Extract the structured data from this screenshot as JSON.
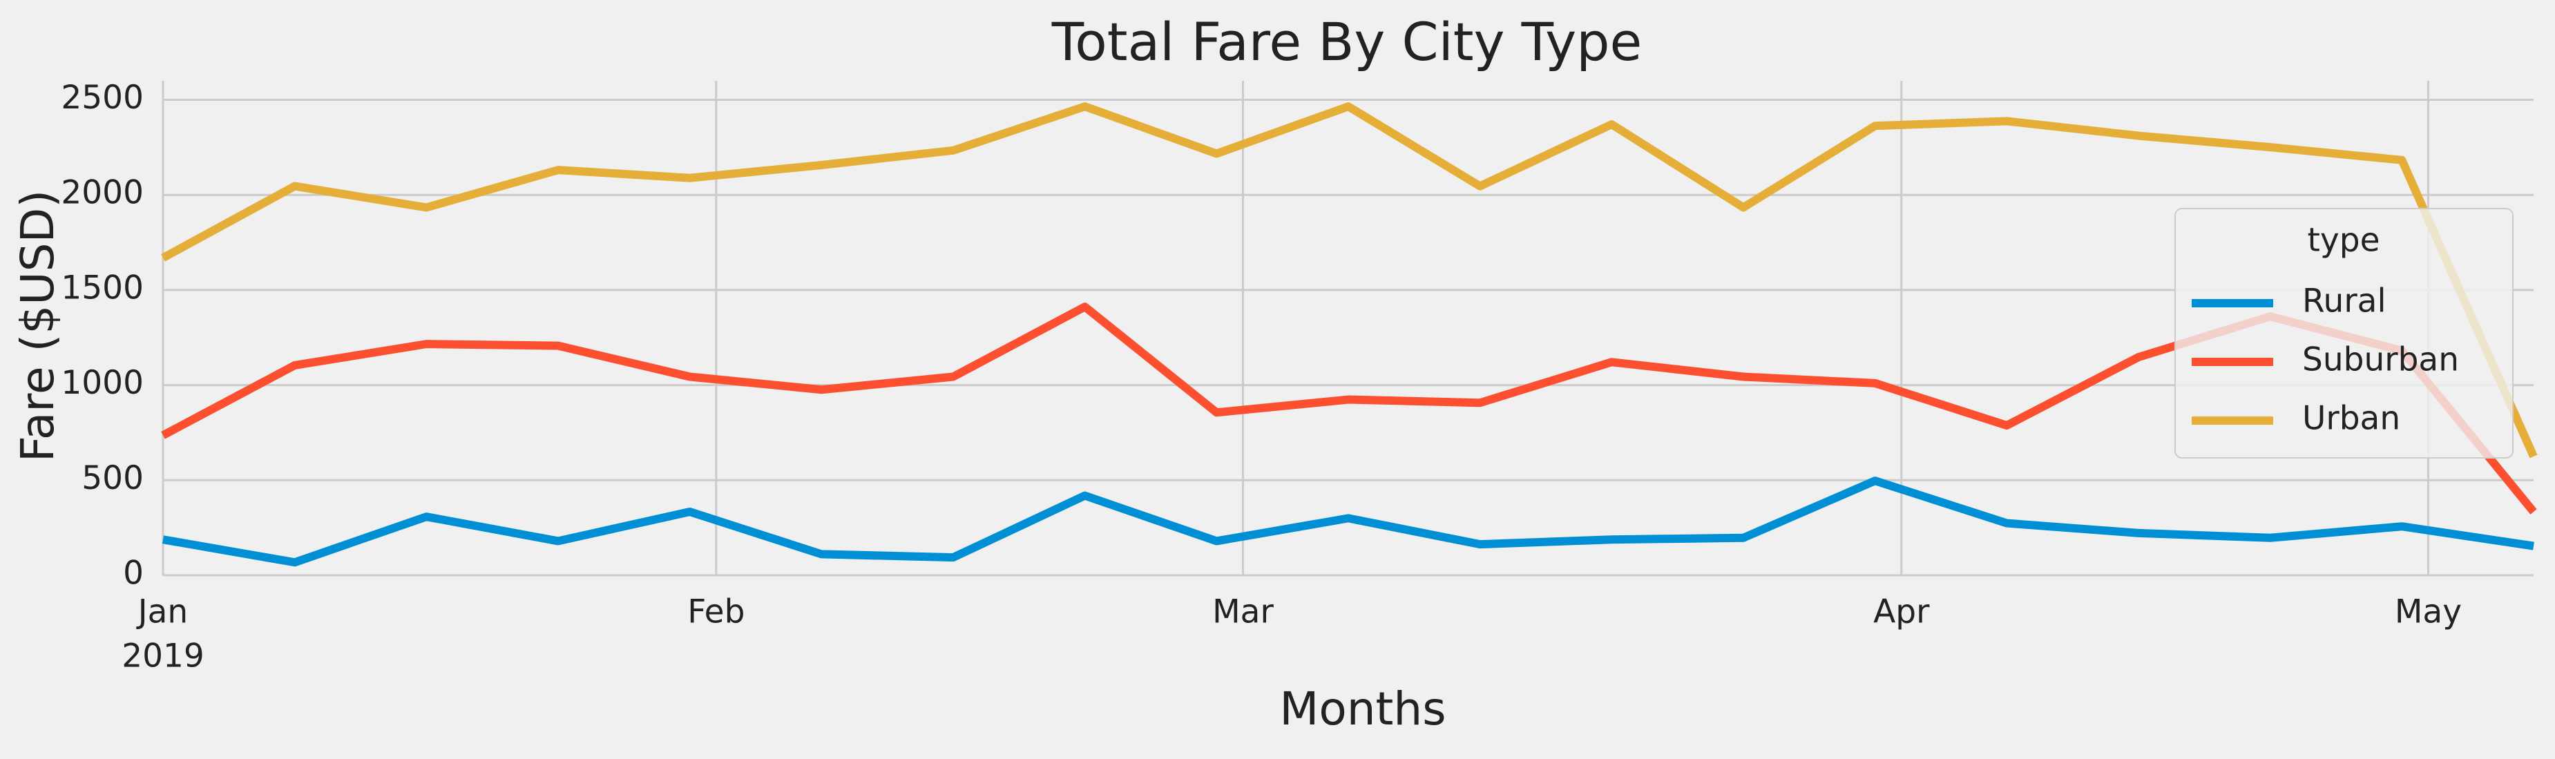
{
  "chart_data": {
    "type": "line",
    "title": "Total Fare By City Type",
    "x_label": "Months",
    "y_label": "Fare ($USD)",
    "x": [
      0,
      1,
      2,
      3,
      4,
      5,
      6,
      7,
      8,
      9,
      10,
      11,
      12,
      13,
      14,
      15,
      16,
      17,
      18
    ],
    "xlim": [
      0,
      18
    ],
    "xticks": [
      {
        "value": 0,
        "label": "Jan"
      },
      {
        "value": 4.2,
        "label": "Feb"
      },
      {
        "value": 8.2,
        "label": "Mar"
      },
      {
        "value": 13.2,
        "label": "Apr"
      },
      {
        "value": 17.2,
        "label": "May"
      }
    ],
    "x_year_label": "2019",
    "ylim": [
      0,
      2600
    ],
    "yticks": [
      0,
      500,
      1000,
      1500,
      2000,
      2500
    ],
    "grid": true,
    "legend_title": "type",
    "legend_position": "right",
    "series": [
      {
        "name": "Rural",
        "color": "#008fd5",
        "values": [
          188,
          68,
          308,
          180,
          334,
          111,
          94,
          419,
          180,
          300,
          163,
          188,
          197,
          497,
          274,
          222,
          197,
          257,
          154
        ]
      },
      {
        "name": "Suburban",
        "color": "#fc4f30",
        "values": [
          736,
          1104,
          1216,
          1207,
          1044,
          976,
          1044,
          1412,
          856,
          924,
          907,
          1121,
          1044,
          1010,
          788,
          1147,
          1361,
          1181,
          334
        ]
      },
      {
        "name": "Urban",
        "color": "#e5ae38",
        "values": [
          1669,
          2046,
          1934,
          2131,
          2089,
          2157,
          2234,
          2465,
          2217,
          2465,
          2046,
          2371,
          1934,
          2363,
          2388,
          2311,
          2251,
          2183,
          625
        ]
      }
    ]
  }
}
